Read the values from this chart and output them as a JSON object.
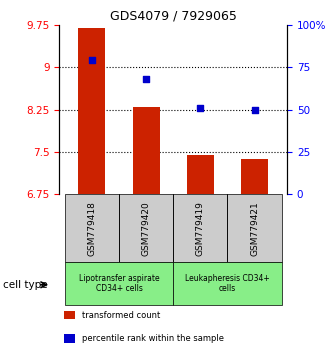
{
  "title": "GDS4079 / 7929065",
  "samples": [
    "GSM779418",
    "GSM779420",
    "GSM779419",
    "GSM779421"
  ],
  "bar_values": [
    9.7,
    8.3,
    7.45,
    7.38
  ],
  "percentile_values": [
    79,
    68,
    51,
    50
  ],
  "bar_color": "#cc2200",
  "dot_color": "#0000cc",
  "ylim_left": [
    6.75,
    9.75
  ],
  "ylim_right": [
    0,
    100
  ],
  "yticks_left": [
    6.75,
    7.5,
    8.25,
    9.0,
    9.75
  ],
  "ytick_labels_left": [
    "6.75",
    "7.5",
    "8.25",
    "9",
    "9.75"
  ],
  "yticks_right": [
    0,
    25,
    50,
    75,
    100
  ],
  "ytick_labels_right": [
    "0",
    "25",
    "50",
    "75",
    "100%"
  ],
  "hlines": [
    7.5,
    8.25,
    9.0
  ],
  "group_labels": [
    "Lipotransfer aspirate\nCD34+ cells",
    "Leukapheresis CD34+\ncells"
  ],
  "group_color": "#88ee88",
  "group_ranges": [
    [
      0,
      2
    ],
    [
      2,
      4
    ]
  ],
  "cell_type_label": "cell type",
  "legend_items": [
    {
      "color": "#cc2200",
      "label": "transformed count"
    },
    {
      "color": "#0000cc",
      "label": "percentile rank within the sample"
    }
  ],
  "bar_width": 0.5,
  "sample_box_color": "#cccccc"
}
